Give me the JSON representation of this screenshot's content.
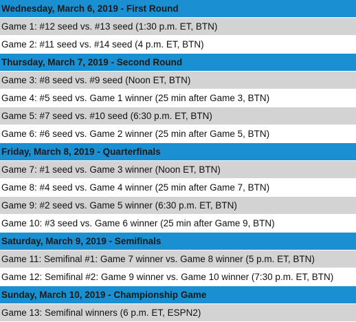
{
  "colors": {
    "header_bg": "#1a8fd1",
    "row_shaded": "#d3d3d3",
    "row_plain": "#ffffff"
  },
  "sections": [
    {
      "title": "Wednesday, March 6, 2019 - First Round",
      "games": [
        "Game 1: #12 seed vs. #13 seed (1:30 p.m. ET, BTN)",
        "Game 2: #11 seed vs. #14 seed (4 p.m. ET, BTN)"
      ]
    },
    {
      "title": "Thursday, March 7, 2019 - Second Round",
      "games": [
        "Game 3: #8 seed vs. #9 seed (Noon ET, BTN)",
        "Game 4: #5 seed vs. Game 1 winner (25 min after Game 3, BTN)",
        "Game 5: #7 seed vs. #10 seed (6:30 p.m. ET, BTN)",
        "Game 6: #6 seed vs. Game 2 winner (25 min after Game 5, BTN)"
      ]
    },
    {
      "title": "Friday, March 8, 2019 - Quarterfinals",
      "games": [
        "Game 7: #1 seed vs. Game 3 winner (Noon ET, BTN)",
        "Game 8: #4 seed vs. Game 4 winner (25 min after Game 7, BTN)",
        "Game 9: #2 seed vs. Game 5 winner (6:30 p.m. ET, BTN)",
        "Game 10: #3 seed vs. Game 6 winner (25 min after Game 9, BTN)"
      ]
    },
    {
      "title": "Saturday, March 9, 2019 - Semifinals",
      "games": [
        "Game 11: Semifinal #1: Game 7 winner vs. Game 8 winner (5 p.m. ET, BTN)",
        "Game 12: Semifinal #2: Game 9 winner vs. Game 10 winner (7:30 p.m. ET, BTN)"
      ]
    },
    {
      "title": "Sunday, March 10, 2019 - Championship Game",
      "games": [
        "Game 13: Semifinal winners (6 p.m. ET, ESPN2)"
      ]
    }
  ]
}
